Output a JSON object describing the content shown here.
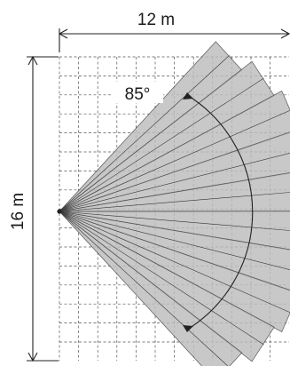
{
  "diagram": {
    "width_label": "12 m",
    "height_label": "16 m",
    "angle_label": "85°",
    "beam_count": 10,
    "colors": {
      "beam_fill": "#bdbdbd",
      "grid": "#555555",
      "line": "#222222"
    }
  }
}
